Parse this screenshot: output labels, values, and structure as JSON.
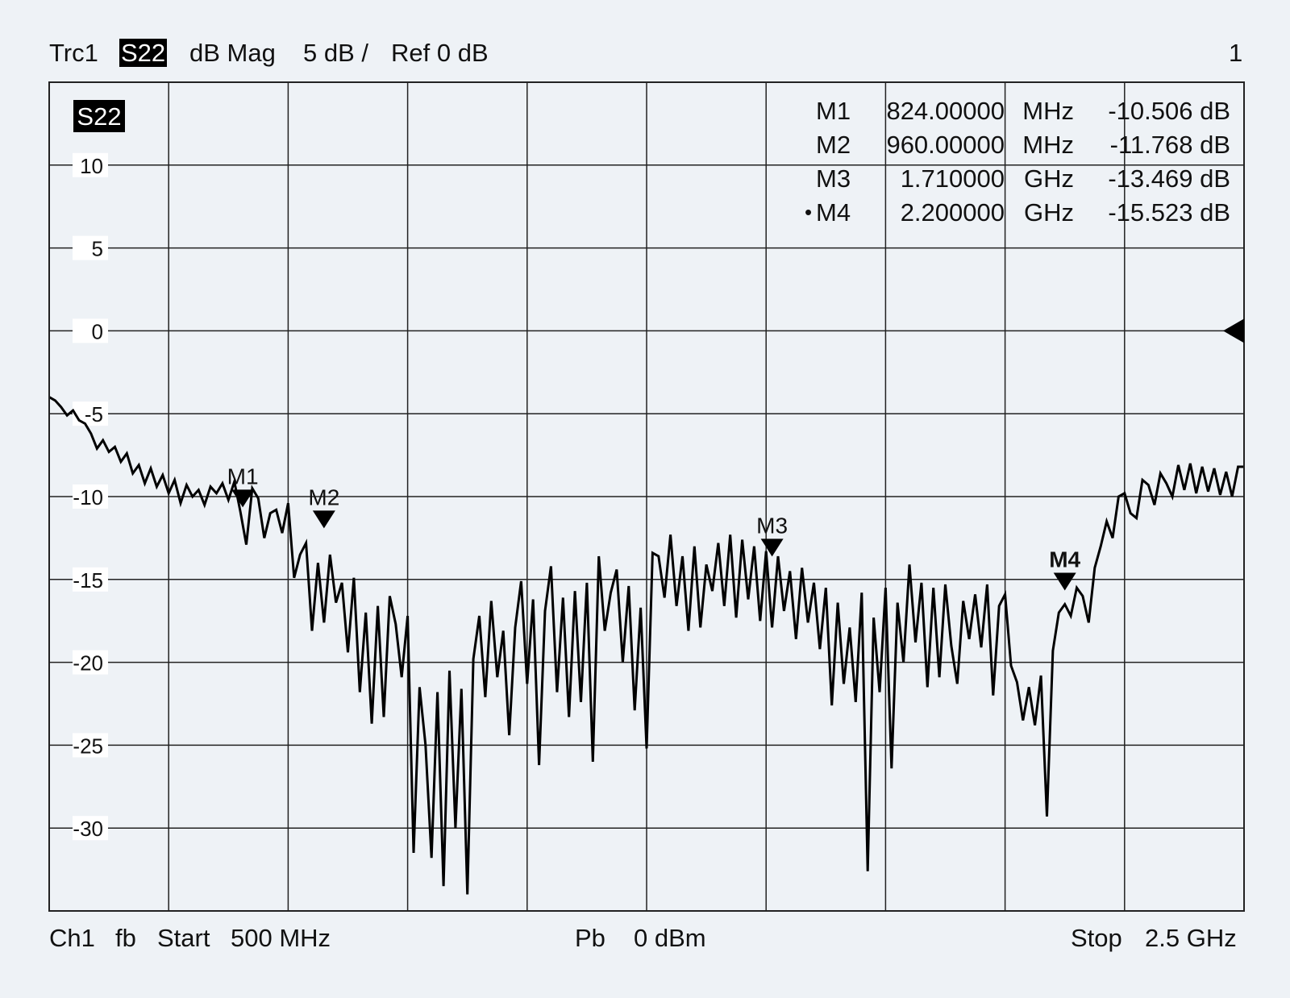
{
  "header": {
    "trace": "Trc1",
    "param": "S22",
    "format": "dB Mag",
    "scale": "5 dB /",
    "ref": "Ref 0 dB",
    "channel_no": "1"
  },
  "footer": {
    "channel": "Ch1",
    "mode": "fb",
    "start_label": "Start",
    "start_value": "500 MHz",
    "power_label": "Pb",
    "power_value": "0 dBm",
    "stop_label": "Stop",
    "stop_value": "2.5 GHz"
  },
  "chart_data": {
    "type": "line",
    "title": "",
    "trace_label": "S22",
    "xlabel": "",
    "ylabel": "",
    "x_unit": "GHz",
    "xlim": [
      0.5,
      2.5
    ],
    "ylim": [
      -35,
      15
    ],
    "yticks": [
      10,
      5,
      0,
      -5,
      -10,
      -15,
      -20,
      -25,
      -30
    ],
    "ytick_labels": [
      "10",
      "5",
      "0",
      "-5",
      "-10",
      "-15",
      "-20",
      "-25",
      "-30"
    ],
    "x_divisions": 10,
    "grid": true,
    "reference_level": 0,
    "line_color": "#000000",
    "series": [
      {
        "x": [
          0.5,
          0.51,
          0.52,
          0.53,
          0.54,
          0.55,
          0.56,
          0.57,
          0.58,
          0.59,
          0.6,
          0.61,
          0.62,
          0.63,
          0.64,
          0.65,
          0.66,
          0.67,
          0.68,
          0.69,
          0.7,
          0.71,
          0.72,
          0.73,
          0.74,
          0.75,
          0.76,
          0.77,
          0.78,
          0.79,
          0.8,
          0.81,
          0.82,
          0.83,
          0.84,
          0.85,
          0.86,
          0.87,
          0.88,
          0.89,
          0.9,
          0.91,
          0.92,
          0.93,
          0.94,
          0.95,
          0.96,
          0.97,
          0.98,
          0.99,
          1.0,
          1.01,
          1.02,
          1.03,
          1.04,
          1.05,
          1.06,
          1.07,
          1.08,
          1.09,
          1.1,
          1.11,
          1.12,
          1.13,
          1.14,
          1.15,
          1.16,
          1.17,
          1.18,
          1.19,
          1.2,
          1.21,
          1.22,
          1.23,
          1.24,
          1.25,
          1.26,
          1.27,
          1.28,
          1.29,
          1.3,
          1.31,
          1.32,
          1.33,
          1.34,
          1.35,
          1.36,
          1.37,
          1.38,
          1.39,
          1.4,
          1.41,
          1.42,
          1.43,
          1.44,
          1.45,
          1.46,
          1.47,
          1.48,
          1.49,
          1.5,
          1.51,
          1.52,
          1.53,
          1.54,
          1.55,
          1.56,
          1.57,
          1.58,
          1.59,
          1.6,
          1.61,
          1.62,
          1.63,
          1.64,
          1.65,
          1.66,
          1.67,
          1.68,
          1.69,
          1.7,
          1.71,
          1.72,
          1.73,
          1.74,
          1.75,
          1.76,
          1.77,
          1.78,
          1.79,
          1.8,
          1.81,
          1.82,
          1.83,
          1.84,
          1.85,
          1.86,
          1.87,
          1.88,
          1.89,
          1.9,
          1.91,
          1.92,
          1.93,
          1.94,
          1.95,
          1.96,
          1.97,
          1.98,
          1.99,
          2.0,
          2.01,
          2.02,
          2.03,
          2.04,
          2.05,
          2.06,
          2.07,
          2.08,
          2.09,
          2.1,
          2.11,
          2.12,
          2.13,
          2.14,
          2.15,
          2.16,
          2.17,
          2.18,
          2.19,
          2.2,
          2.21,
          2.22,
          2.23,
          2.24,
          2.25,
          2.26,
          2.27,
          2.28,
          2.29,
          2.3,
          2.31,
          2.32,
          2.33,
          2.34,
          2.35,
          2.36,
          2.37,
          2.38,
          2.39,
          2.4,
          2.41,
          2.42,
          2.43,
          2.44,
          2.45,
          2.46,
          2.47,
          2.48,
          2.49,
          2.5
        ],
        "y": [
          -4.0,
          -4.2,
          -4.6,
          -5.1,
          -4.8,
          -5.4,
          -5.6,
          -6.2,
          -7.1,
          -6.6,
          -7.3,
          -7.0,
          -7.9,
          -7.4,
          -8.6,
          -8.1,
          -9.2,
          -8.3,
          -9.4,
          -8.7,
          -9.8,
          -9.0,
          -10.4,
          -9.3,
          -10.0,
          -9.6,
          -10.5,
          -9.4,
          -9.8,
          -9.2,
          -10.2,
          -9.1,
          -10.9,
          -12.9,
          -9.5,
          -10.1,
          -12.5,
          -11.0,
          -10.8,
          -12.2,
          -10.4,
          -14.9,
          -13.5,
          -12.8,
          -18.1,
          -14.0,
          -17.6,
          -13.5,
          -16.4,
          -15.2,
          -19.4,
          -14.9,
          -21.8,
          -17.0,
          -23.7,
          -16.6,
          -23.3,
          -16.0,
          -17.7,
          -20.9,
          -17.2,
          -31.5,
          -21.5,
          -25.0,
          -31.8,
          -21.8,
          -33.5,
          -20.5,
          -30.0,
          -21.6,
          -34.0,
          -19.8,
          -17.2,
          -22.1,
          -16.3,
          -20.9,
          -18.1,
          -24.4,
          -17.9,
          -15.1,
          -21.3,
          -16.2,
          -26.2,
          -16.9,
          -14.2,
          -21.8,
          -16.1,
          -23.3,
          -15.7,
          -22.4,
          -15.2,
          -26.0,
          -13.6,
          -18.1,
          -15.8,
          -14.4,
          -20.0,
          -15.4,
          -22.9,
          -16.7,
          -25.2,
          -13.4,
          -13.6,
          -16.1,
          -12.3,
          -16.6,
          -13.6,
          -18.1,
          -13.0,
          -17.9,
          -14.1,
          -15.7,
          -12.8,
          -16.6,
          -12.3,
          -17.3,
          -12.6,
          -16.2,
          -13.0,
          -17.5,
          -13.3,
          -17.9,
          -13.6,
          -16.9,
          -14.5,
          -18.6,
          -14.3,
          -17.6,
          -15.2,
          -19.2,
          -15.5,
          -22.6,
          -16.4,
          -21.3,
          -17.9,
          -22.4,
          -15.8,
          -32.6,
          -17.3,
          -21.8,
          -15.5,
          -26.4,
          -16.4,
          -20.0,
          -14.1,
          -18.8,
          -15.2,
          -21.5,
          -15.5,
          -20.9,
          -15.3,
          -19.0,
          -21.3,
          -16.3,
          -18.6,
          -15.9,
          -19.1,
          -15.3,
          -22.0,
          -16.6,
          -15.9,
          -20.2,
          -21.2,
          -23.5,
          -21.5,
          -23.8,
          -20.8,
          -29.3,
          -19.3,
          -17.0,
          -16.5,
          -17.2,
          -15.5,
          -16.0,
          -17.6,
          -14.3,
          -13.0,
          -11.5,
          -12.5,
          -10.0,
          -9.8,
          -11.0,
          -11.3,
          -9.0,
          -9.3,
          -10.5,
          -8.6,
          -9.2,
          -10.0,
          -8.1,
          -9.6,
          -8.0,
          -9.8,
          -8.2,
          -9.7,
          -8.3,
          -9.9,
          -8.5,
          -10.0,
          -8.2,
          -8.2
        ]
      }
    ],
    "markers": [
      {
        "name": "M1",
        "freq": "824.00000",
        "unit": "MHz",
        "value": "-10.506 dB",
        "x": 0.824,
        "y": -10.506,
        "active": false
      },
      {
        "name": "M2",
        "freq": "960.00000",
        "unit": "MHz",
        "value": "-11.768 dB",
        "x": 0.96,
        "y": -11.768,
        "active": false
      },
      {
        "name": "M3",
        "freq": "1.710000",
        "unit": "GHz",
        "value": "-13.469 dB",
        "x": 1.71,
        "y": -13.469,
        "active": false
      },
      {
        "name": "M4",
        "freq": "2.200000",
        "unit": "GHz",
        "value": "-15.523 dB",
        "x": 2.2,
        "y": -15.523,
        "active": true
      }
    ],
    "active_marker_bullet": "•"
  }
}
